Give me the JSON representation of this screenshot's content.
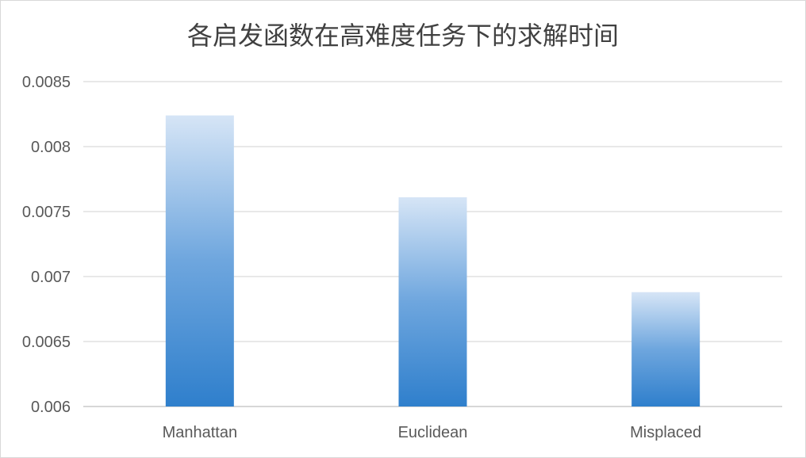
{
  "chart_data": {
    "type": "bar",
    "title": "各启发函数在高难度任务下的求解时间",
    "xlabel": "",
    "ylabel": "",
    "categories": [
      "Manhattan",
      "Euclidean",
      "Misplaced"
    ],
    "series": [
      {
        "values": [
          0.00824,
          0.00761,
          0.00688
        ]
      }
    ],
    "ylim": [
      0.006,
      0.0085
    ],
    "yticks": [
      "0.006",
      "0.0065",
      "0.007",
      "0.0075",
      "0.008",
      "0.0085"
    ],
    "grid": true,
    "legend": "none",
    "colors": {
      "bar_top": "#d6e5f6",
      "bar_mid": "#6ea6de",
      "bar_bottom": "#2f7fcc"
    }
  }
}
